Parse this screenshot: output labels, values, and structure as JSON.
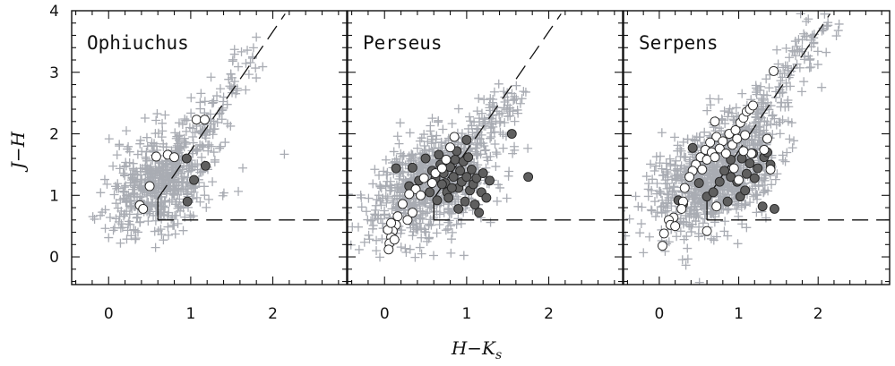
{
  "chart_data": {
    "type": "scatter",
    "xlabel": "H−K",
    "xlabel_sub": "s",
    "ylabel": "J−H",
    "xlim": [
      -0.45,
      2.9
    ],
    "ylim": [
      -0.45,
      4.0
    ],
    "xticks": [
      "0",
      "1",
      "2"
    ],
    "yticks": [
      "0",
      "1",
      "2",
      "3",
      "4"
    ],
    "colors": {
      "field": "#a9acb3",
      "filled": "#5f5f5f",
      "open": "#ffffff",
      "ink": "#111111"
    },
    "shared_lines": {
      "reddening_dashed": {
        "x": [
          0.6,
          2.15
        ],
        "y": [
          0.95,
          3.95
        ]
      },
      "horizontal_dashed": {
        "x": [
          0.6,
          2.9
        ],
        "y": [
          0.6,
          0.6
        ]
      },
      "vertical_cut": {
        "x": [
          0.6,
          0.6
        ],
        "y": [
          0.6,
          0.95
        ]
      }
    },
    "panels": [
      {
        "title": "Ophiuchus",
        "field_cloud": {
          "center": [
            0.62,
            1.22
          ],
          "spread": [
            0.32,
            0.38
          ],
          "count": 650,
          "tail_to": [
            1.85,
            3.4
          ]
        },
        "filled": [
          [
            0.95,
            1.6
          ],
          [
            1.18,
            1.48
          ],
          [
            1.04,
            1.25
          ],
          [
            0.96,
            0.9
          ]
        ],
        "open": [
          [
            0.58,
            1.63
          ],
          [
            0.72,
            1.66
          ],
          [
            0.8,
            1.62
          ],
          [
            1.07,
            2.23
          ],
          [
            1.17,
            2.23
          ],
          [
            0.5,
            1.15
          ],
          [
            0.38,
            0.84
          ],
          [
            0.42,
            0.78
          ]
        ]
      },
      {
        "title": "Perseus",
        "field_cloud": {
          "center": [
            0.55,
            1.15
          ],
          "spread": [
            0.38,
            0.42
          ],
          "count": 900,
          "tail_to": [
            1.6,
            2.7
          ]
        },
        "filled": [
          [
            0.14,
            1.44
          ],
          [
            0.34,
            1.45
          ],
          [
            0.5,
            1.6
          ],
          [
            0.58,
            1.4
          ],
          [
            0.62,
            1.28
          ],
          [
            0.68,
            1.5
          ],
          [
            0.72,
            1.36
          ],
          [
            0.74,
            1.2
          ],
          [
            0.76,
            1.05
          ],
          [
            0.78,
            0.96
          ],
          [
            0.8,
            1.46
          ],
          [
            0.84,
            1.3
          ],
          [
            0.86,
            1.58
          ],
          [
            0.88,
            1.72
          ],
          [
            0.9,
            1.12
          ],
          [
            0.92,
            1.4
          ],
          [
            0.94,
            1.22
          ],
          [
            0.96,
            1.55
          ],
          [
            0.98,
            0.9
          ],
          [
            1.0,
            1.3
          ],
          [
            1.02,
            1.62
          ],
          [
            1.04,
            1.08
          ],
          [
            1.06,
            1.42
          ],
          [
            1.08,
            1.18
          ],
          [
            1.1,
            0.85
          ],
          [
            1.12,
            1.28
          ],
          [
            1.15,
            0.72
          ],
          [
            1.18,
            1.05
          ],
          [
            1.2,
            1.36
          ],
          [
            1.24,
            0.96
          ],
          [
            1.28,
            1.24
          ],
          [
            1.55,
            2.0
          ],
          [
            1.75,
            1.3
          ],
          [
            0.3,
            1.15
          ],
          [
            0.42,
            1.24
          ],
          [
            0.55,
            1.05
          ],
          [
            0.64,
            0.92
          ],
          [
            0.7,
            1.18
          ],
          [
            0.82,
            1.12
          ],
          [
            0.66,
            1.66
          ],
          [
            1.0,
            1.9
          ],
          [
            0.9,
            0.78
          ]
        ],
        "open": [
          [
            0.85,
            1.95
          ],
          [
            0.8,
            1.78
          ],
          [
            0.75,
            1.58
          ],
          [
            0.62,
            1.36
          ],
          [
            0.48,
            1.28
          ],
          [
            0.38,
            1.1
          ],
          [
            0.3,
            1.02
          ],
          [
            0.22,
            0.86
          ],
          [
            0.16,
            0.66
          ],
          [
            0.28,
            0.6
          ],
          [
            0.14,
            0.52
          ],
          [
            0.1,
            0.42
          ],
          [
            0.08,
            0.32
          ],
          [
            0.06,
            0.22
          ],
          [
            0.05,
            0.12
          ],
          [
            0.04,
            0.44
          ],
          [
            0.12,
            0.28
          ],
          [
            0.08,
            0.55
          ],
          [
            0.44,
            1.0
          ],
          [
            0.58,
            1.2
          ],
          [
            0.7,
            1.44
          ],
          [
            0.34,
            0.72
          ]
        ]
      },
      {
        "title": "Serpens",
        "field_cloud": {
          "center": [
            0.72,
            1.32
          ],
          "spread": [
            0.4,
            0.45
          ],
          "count": 1100,
          "tail_to": [
            2.05,
            3.75
          ]
        },
        "filled": [
          [
            0.42,
            1.77
          ],
          [
            0.82,
            1.4
          ],
          [
            0.9,
            1.58
          ],
          [
            0.98,
            1.22
          ],
          [
            1.04,
            1.6
          ],
          [
            1.1,
            1.35
          ],
          [
            1.14,
            1.52
          ],
          [
            1.18,
            1.68
          ],
          [
            1.2,
            1.28
          ],
          [
            1.24,
            1.44
          ],
          [
            1.32,
            1.62
          ],
          [
            1.36,
            1.7
          ],
          [
            1.4,
            1.5
          ],
          [
            0.24,
            0.92
          ],
          [
            0.3,
            0.86
          ],
          [
            0.5,
            1.2
          ],
          [
            0.6,
            0.98
          ],
          [
            0.68,
            1.05
          ],
          [
            1.02,
            0.98
          ],
          [
            0.76,
            1.22
          ],
          [
            0.9,
            1.3
          ],
          [
            1.3,
            0.82
          ],
          [
            1.45,
            0.78
          ],
          [
            1.08,
            1.08
          ],
          [
            0.86,
            0.9
          ]
        ],
        "open": [
          [
            0.72,
            1.95
          ],
          [
            0.8,
            1.88
          ],
          [
            0.88,
            2.0
          ],
          [
            0.96,
            2.06
          ],
          [
            1.02,
            2.18
          ],
          [
            1.06,
            2.26
          ],
          [
            1.1,
            2.36
          ],
          [
            1.14,
            2.4
          ],
          [
            1.18,
            2.46
          ],
          [
            0.64,
            1.86
          ],
          [
            0.58,
            1.74
          ],
          [
            0.52,
            1.62
          ],
          [
            0.46,
            1.5
          ],
          [
            0.42,
            1.4
          ],
          [
            0.38,
            1.3
          ],
          [
            0.54,
            1.42
          ],
          [
            0.6,
            1.58
          ],
          [
            0.66,
            1.7
          ],
          [
            0.7,
            1.62
          ],
          [
            0.76,
            1.76
          ],
          [
            0.84,
            1.68
          ],
          [
            0.92,
            1.82
          ],
          [
            0.98,
            1.92
          ],
          [
            1.08,
            1.98
          ],
          [
            1.36,
            1.92
          ],
          [
            1.4,
            1.42
          ],
          [
            1.32,
            1.74
          ],
          [
            1.16,
            1.68
          ],
          [
            1.06,
            1.72
          ],
          [
            0.32,
            1.12
          ],
          [
            0.3,
            0.9
          ],
          [
            0.28,
            0.78
          ],
          [
            0.18,
            0.64
          ],
          [
            0.12,
            0.6
          ],
          [
            0.14,
            0.52
          ],
          [
            0.2,
            0.5
          ],
          [
            0.06,
            0.38
          ],
          [
            0.04,
            0.18
          ],
          [
            0.6,
            0.42
          ],
          [
            0.72,
            0.82
          ],
          [
            0.94,
            1.44
          ],
          [
            1.44,
            3.02
          ],
          [
            0.7,
            2.2
          ],
          [
            1.0,
            1.25
          ]
        ]
      }
    ]
  }
}
